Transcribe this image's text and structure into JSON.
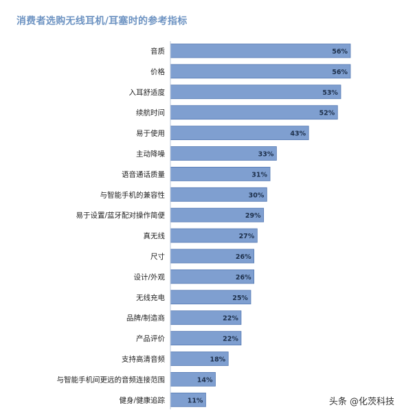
{
  "chart_data": {
    "type": "bar",
    "orientation": "horizontal",
    "title": "消费者选购无线耳机/耳塞时的参考指标",
    "categories": [
      "音质",
      "价格",
      "入耳舒适度",
      "续航时间",
      "易于使用",
      "主动降噪",
      "语音通话质量",
      "与智能手机的兼容性",
      "易于设置/蓝牙配对操作简便",
      "真无线",
      "尺寸",
      "设计/外观",
      "无线充电",
      "品牌/制造商",
      "产品评价",
      "支持高清音频",
      "与智能手机间更远的音频连接范围",
      "健身/健康追踪"
    ],
    "values": [
      56,
      56,
      53,
      52,
      43,
      33,
      31,
      30,
      29,
      27,
      26,
      26,
      25,
      22,
      22,
      18,
      14,
      11
    ],
    "value_labels": [
      "56%",
      "56%",
      "53%",
      "52%",
      "43%",
      "33%",
      "31%",
      "30%",
      "29%",
      "27%",
      "26%",
      "26%",
      "25%",
      "22%",
      "22%",
      "18%",
      "14%",
      "11%"
    ],
    "unit": "%",
    "xlim": [
      0,
      56
    ],
    "bar_color": "#7f9fd0",
    "bar_edge_color": "#5478b2"
  },
  "watermark": "头条 @化茨科技"
}
